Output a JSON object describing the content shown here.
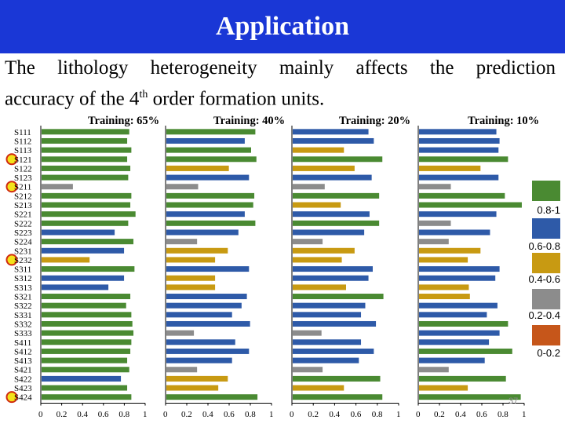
{
  "slide": {
    "title": "Application",
    "text_line1": "The lithology heterogeneity mainly affects the prediction",
    "text_line2_pre": "accuracy of the 4",
    "text_line2_sup": "th",
    "text_line2_post": " order formation units.",
    "slide_number": "37"
  },
  "legend": [
    {
      "label": "0.8-1",
      "color": "#4a8a32"
    },
    {
      "label": "0.6-0.8",
      "color": "#2e5aa8"
    },
    {
      "label": "0.4-0.6",
      "color": "#c89a12"
    },
    {
      "label": "0.2-0.4",
      "color": "#8c8c8c"
    },
    {
      "label": "0-0.2",
      "color": "#c6561a"
    }
  ],
  "chart_data": {
    "type": "bar",
    "orientation": "horizontal",
    "categories": [
      "S111",
      "S112",
      "S113",
      "S121",
      "S122",
      "S123",
      "S211",
      "S212",
      "S213",
      "S221",
      "S222",
      "S223",
      "S224",
      "S231",
      "S232",
      "S311",
      "S312",
      "S313",
      "S321",
      "S322",
      "S331",
      "S332",
      "S333",
      "S411",
      "S412",
      "S413",
      "S421",
      "S422",
      "S423",
      "S424"
    ],
    "highlighted_categories": [
      "S121",
      "S211",
      "S232",
      "S424"
    ],
    "xlim": [
      0,
      1
    ],
    "xticks": [
      "0",
      "0.2",
      "0.4",
      "0.6",
      "0.8",
      "1"
    ],
    "series": [
      {
        "name": "Training: 65%",
        "values": [
          0.84,
          0.82,
          0.86,
          0.82,
          0.85,
          0.83,
          0.3,
          0.86,
          0.85,
          0.9,
          0.83,
          0.7,
          0.88,
          0.79,
          0.46,
          0.89,
          0.79,
          0.64,
          0.85,
          0.81,
          0.86,
          0.87,
          0.88,
          0.86,
          0.85,
          0.82,
          0.84,
          0.76,
          0.82,
          0.86
        ]
      },
      {
        "name": "Training: 40%",
        "values": [
          0.84,
          0.74,
          0.8,
          0.85,
          0.59,
          0.78,
          0.3,
          0.83,
          0.82,
          0.74,
          0.84,
          0.68,
          0.29,
          0.58,
          0.46,
          0.78,
          0.46,
          0.46,
          0.76,
          0.71,
          0.62,
          0.79,
          0.26,
          0.65,
          0.78,
          0.62,
          0.29,
          0.58,
          0.49,
          0.86
        ]
      },
      {
        "name": "Training: 20%",
        "values": [
          0.71,
          0.76,
          0.48,
          0.84,
          0.58,
          0.74,
          0.3,
          0.81,
          0.45,
          0.72,
          0.81,
          0.67,
          0.28,
          0.58,
          0.46,
          0.75,
          0.71,
          0.5,
          0.85,
          0.68,
          0.64,
          0.78,
          0.27,
          0.64,
          0.76,
          0.62,
          0.28,
          0.82,
          0.48,
          0.84
        ]
      },
      {
        "name": "Training: 10%",
        "values": [
          0.73,
          0.76,
          0.75,
          0.84,
          0.58,
          0.75,
          0.3,
          0.81,
          0.97,
          0.73,
          0.3,
          0.67,
          0.28,
          0.58,
          0.46,
          0.76,
          0.72,
          0.47,
          0.48,
          0.74,
          0.64,
          0.84,
          0.76,
          0.66,
          0.88,
          0.62,
          0.28,
          0.82,
          0.46,
          0.96
        ]
      }
    ],
    "class_thresholds": [
      0.8,
      0.6,
      0.4,
      0.2
    ]
  }
}
